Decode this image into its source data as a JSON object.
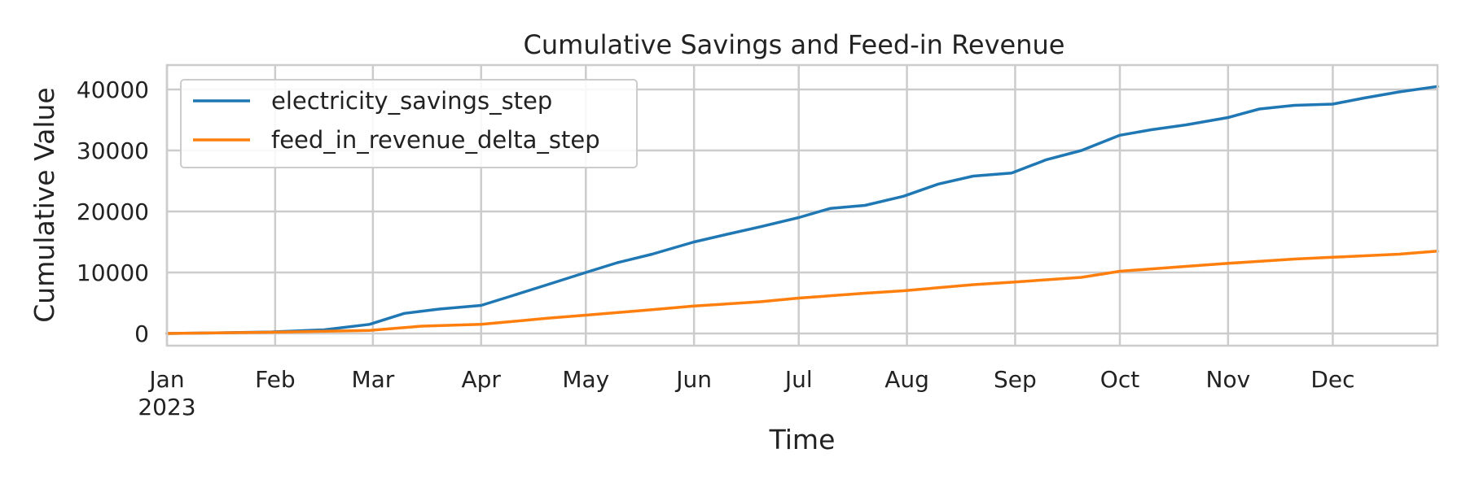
{
  "chart_data": {
    "type": "line",
    "title": "Cumulative Savings and Feed-in Revenue",
    "xlabel": "Time",
    "ylabel": "Cumulative Value",
    "x_type": "date",
    "xlim": [
      "2023-01-01",
      "2023-12-31"
    ],
    "ylim": [
      -2000,
      44000
    ],
    "x_ticks": [
      {
        "date": "2023-01-01",
        "label": "Jan",
        "sublabel": "2023"
      },
      {
        "date": "2023-02-01",
        "label": "Feb"
      },
      {
        "date": "2023-03-01",
        "label": "Mar"
      },
      {
        "date": "2023-04-01",
        "label": "Apr"
      },
      {
        "date": "2023-05-01",
        "label": "May"
      },
      {
        "date": "2023-06-01",
        "label": "Jun"
      },
      {
        "date": "2023-07-01",
        "label": "Jul"
      },
      {
        "date": "2023-08-01",
        "label": "Aug"
      },
      {
        "date": "2023-09-01",
        "label": "Sep"
      },
      {
        "date": "2023-10-01",
        "label": "Oct"
      },
      {
        "date": "2023-11-01",
        "label": "Nov"
      },
      {
        "date": "2023-12-01",
        "label": "Dec"
      }
    ],
    "y_ticks": [
      0,
      10000,
      20000,
      30000,
      40000
    ],
    "grid": true,
    "legend_position": "top-left",
    "series": [
      {
        "name": "electricity_savings_step",
        "color": "#1f77b4",
        "points": [
          [
            "2023-01-01",
            0
          ],
          [
            "2023-01-15",
            100
          ],
          [
            "2023-01-31",
            250
          ],
          [
            "2023-02-15",
            600
          ],
          [
            "2023-02-28",
            1500
          ],
          [
            "2023-03-10",
            3300
          ],
          [
            "2023-03-20",
            4000
          ],
          [
            "2023-04-01",
            4600
          ],
          [
            "2023-04-10",
            6200
          ],
          [
            "2023-04-20",
            8000
          ],
          [
            "2023-05-01",
            10000
          ],
          [
            "2023-05-10",
            11600
          ],
          [
            "2023-05-20",
            13000
          ],
          [
            "2023-06-01",
            15000
          ],
          [
            "2023-06-10",
            16200
          ],
          [
            "2023-06-20",
            17500
          ],
          [
            "2023-07-01",
            19000
          ],
          [
            "2023-07-10",
            20500
          ],
          [
            "2023-07-20",
            21000
          ],
          [
            "2023-07-31",
            22500
          ],
          [
            "2023-08-10",
            24500
          ],
          [
            "2023-08-20",
            25800
          ],
          [
            "2023-08-31",
            26300
          ],
          [
            "2023-09-10",
            28500
          ],
          [
            "2023-09-20",
            30000
          ],
          [
            "2023-10-01",
            32500
          ],
          [
            "2023-10-10",
            33400
          ],
          [
            "2023-10-20",
            34200
          ],
          [
            "2023-11-01",
            35400
          ],
          [
            "2023-11-10",
            36800
          ],
          [
            "2023-11-20",
            37400
          ],
          [
            "2023-12-01",
            37600
          ],
          [
            "2023-12-10",
            38600
          ],
          [
            "2023-12-20",
            39600
          ],
          [
            "2023-12-31",
            40500
          ]
        ]
      },
      {
        "name": "feed_in_revenue_delta_step",
        "color": "#ff7f0e",
        "points": [
          [
            "2023-01-01",
            0
          ],
          [
            "2023-01-31",
            200
          ],
          [
            "2023-02-28",
            500
          ],
          [
            "2023-03-15",
            1200
          ],
          [
            "2023-04-01",
            1500
          ],
          [
            "2023-04-20",
            2500
          ],
          [
            "2023-05-01",
            3000
          ],
          [
            "2023-05-20",
            3900
          ],
          [
            "2023-06-01",
            4500
          ],
          [
            "2023-06-20",
            5200
          ],
          [
            "2023-07-01",
            5800
          ],
          [
            "2023-07-20",
            6600
          ],
          [
            "2023-07-31",
            7000
          ],
          [
            "2023-08-20",
            8000
          ],
          [
            "2023-08-31",
            8400
          ],
          [
            "2023-09-20",
            9200
          ],
          [
            "2023-10-01",
            10200
          ],
          [
            "2023-10-20",
            11000
          ],
          [
            "2023-11-01",
            11500
          ],
          [
            "2023-11-20",
            12200
          ],
          [
            "2023-12-01",
            12500
          ],
          [
            "2023-12-20",
            13000
          ],
          [
            "2023-12-31",
            13500
          ]
        ]
      }
    ]
  }
}
